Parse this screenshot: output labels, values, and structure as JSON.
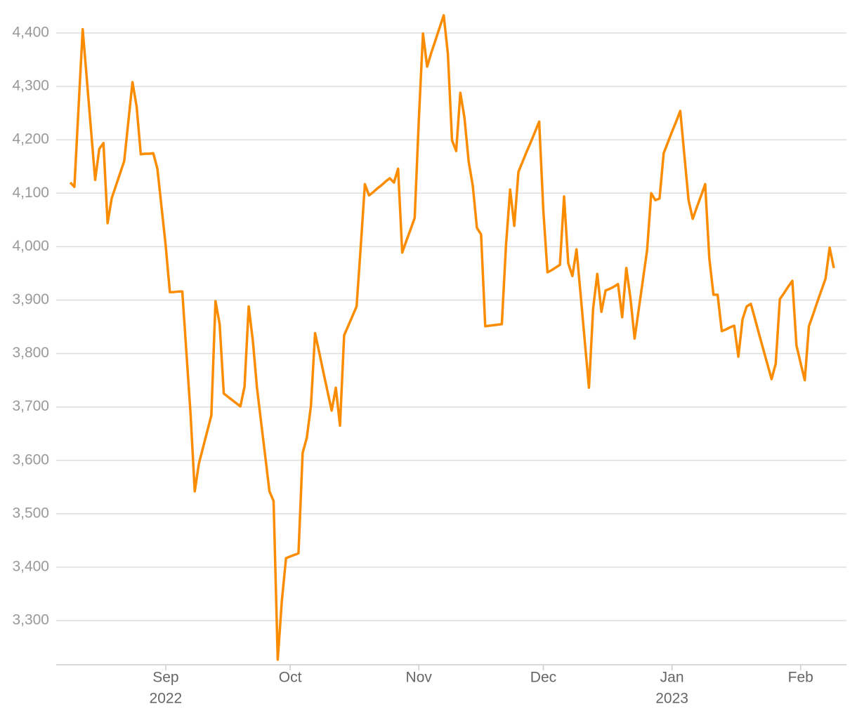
{
  "chart_data": {
    "type": "line",
    "series": [
      {
        "color": "#fb8c00",
        "values": [
          4120,
          4112,
          4260,
          4407,
          4313,
          4219,
          4125,
          4183,
          4194,
          4044,
          4091,
          4114,
          4137,
          4160,
          4234,
          4308,
          4262,
          4173,
          4174,
          4174,
          4175,
          4146,
          4074,
          4002,
          3915,
          3915,
          3916,
          3916,
          3801,
          3686,
          3542,
          3594,
          3624,
          3654,
          3684,
          3898,
          3855,
          3725,
          3719,
          3713,
          3707,
          3701,
          3738,
          3888,
          3824,
          3736,
          3671,
          3607,
          3542,
          3524,
          3227,
          3338,
          3417,
          3420,
          3423,
          3426,
          3614,
          3642,
          3702,
          3838,
          3802,
          3765,
          3729,
          3693,
          3736,
          3665,
          3834,
          3852,
          3870,
          3888,
          4000,
          4117,
          4096,
          4102,
          4109,
          4115,
          4122,
          4128,
          4120,
          4146,
          3989,
          4011,
          4032,
          4054,
          4238,
          4399,
          4337,
          4363,
          4386,
          4410,
          4433,
          4361,
          4199,
          4179,
          4288,
          4241,
          4160,
          4114,
          4035,
          4023,
          3851,
          3852,
          3853,
          3854,
          3855,
          4002,
          4107,
          4039,
          4140,
          4159,
          4178,
          4196,
          4215,
          4234,
          4068,
          3952,
          3956,
          3961,
          3966,
          4094,
          3969,
          3945,
          3995,
          3909,
          3822,
          3736,
          3884,
          3949,
          3878,
          3918,
          3921,
          3925,
          3930,
          3868,
          3960,
          3903,
          3828,
          3883,
          3938,
          3993,
          4100,
          4087,
          4090,
          4175,
          4195,
          4215,
          4234,
          4254,
          4170,
          4087,
          4052,
          4074,
          4095,
          4117,
          3978,
          3910,
          3910,
          3842,
          3845,
          3849,
          3852,
          3794,
          3864,
          3888,
          3893,
          3865,
          3836,
          3808,
          3780,
          3752,
          3781,
          3902,
          3913,
          3925,
          3936,
          3815,
          3782,
          3750,
          3851,
          3873,
          3896,
          3918,
          3940,
          3998,
          3960
        ]
      }
    ],
    "xlim": [
      0,
      184
    ],
    "xticks": [
      {
        "value": 23,
        "label": "Sep"
      },
      {
        "value": 53,
        "label": "Oct"
      },
      {
        "value": 84,
        "label": "Nov"
      },
      {
        "value": 114,
        "label": "Dec"
      },
      {
        "value": 145,
        "label": "Jan"
      },
      {
        "value": 176,
        "label": "Feb"
      }
    ],
    "xtick_years": [
      {
        "value": 23,
        "label": "2022"
      },
      {
        "value": 145,
        "label": "2023"
      }
    ],
    "ylim": [
      3220,
      4442
    ],
    "yticks": [
      {
        "value": 3300,
        "label": "3,300"
      },
      {
        "value": 3400,
        "label": "3,400"
      },
      {
        "value": 3500,
        "label": "3,500"
      },
      {
        "value": 3600,
        "label": "3,600"
      },
      {
        "value": 3700,
        "label": "3,700"
      },
      {
        "value": 3800,
        "label": "3,800"
      },
      {
        "value": 3900,
        "label": "3,900"
      },
      {
        "value": 4000,
        "label": "4,000"
      },
      {
        "value": 4100,
        "label": "4,100"
      },
      {
        "value": 4200,
        "label": "4,200"
      },
      {
        "value": 4300,
        "label": "4,300"
      },
      {
        "value": 4400,
        "label": "4,400"
      }
    ],
    "grid": true
  }
}
